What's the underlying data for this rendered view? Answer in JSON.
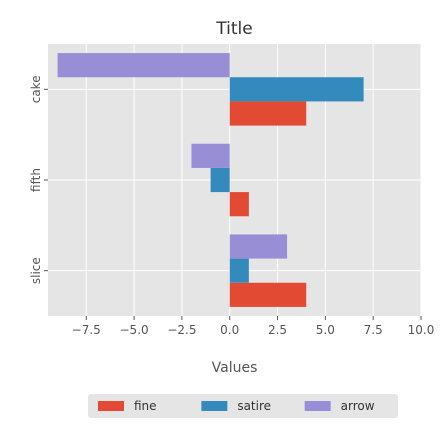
{
  "chart_data": {
    "type": "bar",
    "orientation": "horizontal",
    "title": "Title",
    "xlabel": "Values",
    "ylabel": "",
    "categories": [
      "slice",
      "fifth",
      "cake"
    ],
    "series": [
      {
        "name": "fine",
        "color": "#e24a33",
        "values": [
          4,
          1,
          4
        ]
      },
      {
        "name": "satire",
        "color": "#348abd",
        "values": [
          1,
          -1,
          7
        ]
      },
      {
        "name": "arrow",
        "color": "#988ed5",
        "values": [
          3,
          -2,
          -9
        ]
      }
    ],
    "xlim": [
      -9.5,
      10
    ],
    "xticks": [
      -7.5,
      -5.0,
      -2.5,
      0.0,
      2.5,
      5.0,
      7.5,
      10.0
    ],
    "xtick_labels": [
      "−7.5",
      "−5.0",
      "−2.5",
      "0.0",
      "2.5",
      "5.0",
      "7.5",
      "10.0"
    ],
    "grid": true,
    "legend_position": "bottom-center",
    "background": "#e5e5e5"
  }
}
